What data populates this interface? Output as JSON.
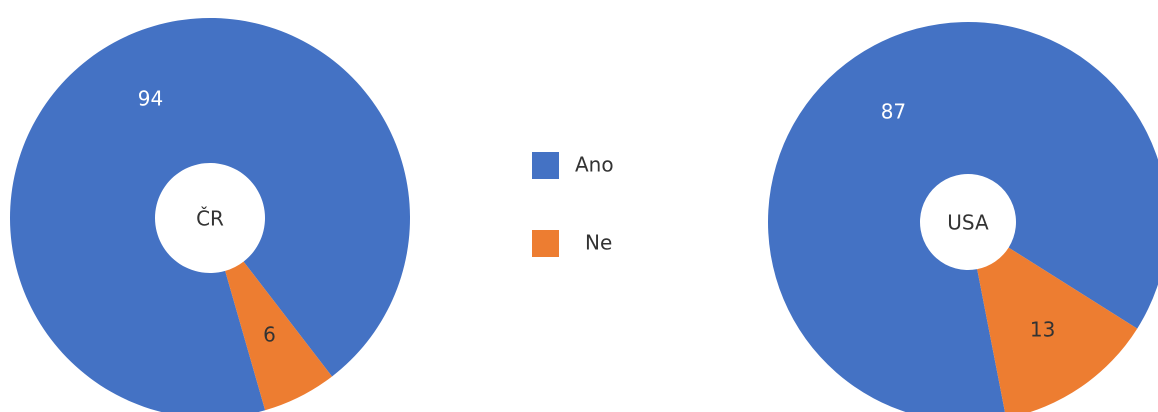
{
  "chart_data": [
    {
      "type": "pie",
      "title": "ČR",
      "categories": [
        "Ano",
        "Ne"
      ],
      "values": [
        94,
        6
      ],
      "colors": [
        "#4472c4",
        "#ed7d31"
      ]
    },
    {
      "type": "pie",
      "title": "USA",
      "categories": [
        "Ano",
        "Ne"
      ],
      "values": [
        87,
        13
      ],
      "colors": [
        "#4472c4",
        "#ed7d31"
      ]
    }
  ]
}
